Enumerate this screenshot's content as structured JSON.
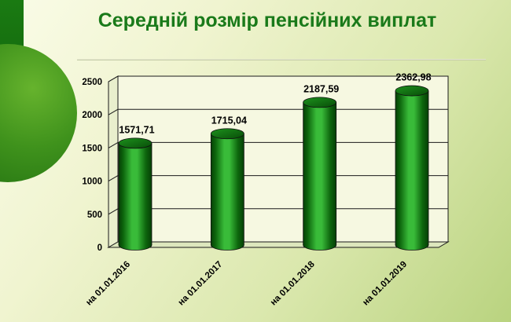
{
  "chart_data": {
    "type": "bar",
    "style": "3d-cylinder",
    "title": "Середній розмір пенсійних виплат",
    "categories": [
      "на 01.01.2016",
      "на 01.01.2017",
      "на 01.01.2018",
      "на 01.01.2019"
    ],
    "values": [
      1571.71,
      1715.04,
      2187.59,
      2362.98
    ],
    "value_labels": [
      "1571,71",
      "1715,04",
      "2187,59",
      "2362,98"
    ],
    "xlabel": "",
    "ylabel": "",
    "ylim": [
      0,
      2500
    ],
    "yticks": [
      0,
      500,
      1000,
      1500,
      2000,
      2500
    ],
    "grid": true,
    "legend": false
  },
  "colors": {
    "title": "#1a7a1a",
    "bar_dark": "#063f06",
    "bar_mid": "#0d660d",
    "bar_light": "#39bb39",
    "cap_light": "#1d921d",
    "cap_dark": "#084c08",
    "back_wall": "#f6f8e1",
    "side_wall": "#e9efcd",
    "floor": "#dde7bd",
    "grid_line": "#1a1a1a",
    "label_text": "#000000",
    "deco_dark_green": "#0e5c0a",
    "deco_circle_green": "#3f921c",
    "background_light": "#fafce8",
    "background_green": "#b9d37f"
  }
}
